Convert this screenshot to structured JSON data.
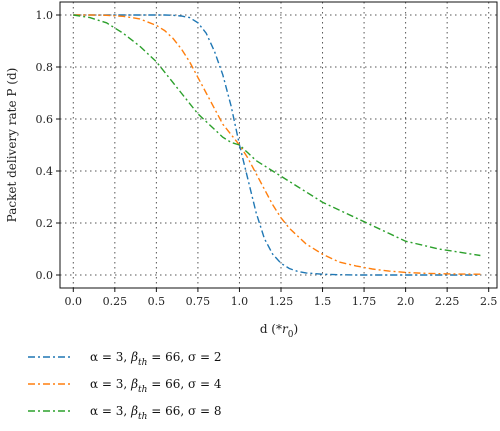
{
  "chart_data": {
    "type": "line",
    "xlabel": "d (*r₀)",
    "xlabel_main": "d (*",
    "xlabel_var": "r",
    "xlabel_sub": "0",
    "xlabel_close": ")",
    "ylabel": "Packet delivery rate P (d)",
    "xlim": [
      -0.08,
      2.55
    ],
    "ylim": [
      -0.05,
      1.05
    ],
    "xticks": [
      0.0,
      0.25,
      0.5,
      0.75,
      1.0,
      1.25,
      1.5,
      1.75,
      2.0,
      2.25,
      2.5
    ],
    "xtick_labels": [
      "0.0",
      "0.25",
      "0.5",
      "0.75",
      "1.0",
      "1.25",
      "1.5",
      "1.75",
      "2.0",
      "2.25",
      "2.5"
    ],
    "yticks": [
      0.0,
      0.2,
      0.4,
      0.6,
      0.8,
      1.0
    ],
    "ytick_labels": [
      "0.0",
      "0.2",
      "0.4",
      "0.6",
      "0.8",
      "1.0"
    ],
    "grid": true,
    "grid_style": "dotted",
    "legend_position": "below",
    "x": [
      0.0,
      0.1,
      0.2,
      0.3,
      0.4,
      0.5,
      0.55,
      0.6,
      0.65,
      0.7,
      0.75,
      0.8,
      0.85,
      0.9,
      0.95,
      1.0,
      1.05,
      1.1,
      1.15,
      1.2,
      1.25,
      1.3,
      1.35,
      1.4,
      1.5,
      1.6,
      1.7,
      1.8,
      1.9,
      2.0,
      2.1,
      2.2,
      2.3,
      2.45
    ],
    "series": [
      {
        "name": "α = 3, βth = 66, σ = 2",
        "sigma": "2",
        "color": "#1f77b4",
        "values": [
          1.0,
          1.0,
          1.0,
          1.0,
          1.0,
          1.0,
          1.0,
          0.999,
          0.996,
          0.99,
          0.97,
          0.93,
          0.86,
          0.77,
          0.65,
          0.5,
          0.37,
          0.24,
          0.14,
          0.08,
          0.045,
          0.025,
          0.014,
          0.008,
          0.003,
          0.001,
          0.0,
          0.0,
          0.0,
          0.0,
          0.0,
          0.0,
          0.0,
          0.0
        ]
      },
      {
        "name": "α = 3, βth = 66, σ = 4",
        "sigma": "4",
        "color": "#ff7f0e",
        "values": [
          1.0,
          1.0,
          0.999,
          0.995,
          0.985,
          0.96,
          0.94,
          0.91,
          0.87,
          0.82,
          0.76,
          0.7,
          0.64,
          0.58,
          0.54,
          0.5,
          0.45,
          0.39,
          0.33,
          0.27,
          0.22,
          0.18,
          0.15,
          0.12,
          0.08,
          0.05,
          0.035,
          0.023,
          0.015,
          0.01,
          0.007,
          0.005,
          0.004,
          0.003
        ]
      },
      {
        "name": "α = 3, βth = 66, σ = 8",
        "sigma": "8",
        "color": "#2ca02c",
        "values": [
          1.0,
          0.99,
          0.97,
          0.93,
          0.88,
          0.82,
          0.78,
          0.74,
          0.7,
          0.66,
          0.62,
          0.59,
          0.56,
          0.53,
          0.51,
          0.5,
          0.47,
          0.44,
          0.42,
          0.4,
          0.38,
          0.36,
          0.34,
          0.32,
          0.28,
          0.25,
          0.22,
          0.19,
          0.16,
          0.13,
          0.115,
          0.1,
          0.09,
          0.075
        ]
      }
    ]
  },
  "legend": [
    {
      "alpha": "α = 3, ",
      "beta": "β",
      "beta_sub": "th",
      "rest": " = 66, σ = 2"
    },
    {
      "alpha": "α = 3, ",
      "beta": "β",
      "beta_sub": "th",
      "rest": " = 66, σ = 4"
    },
    {
      "alpha": "α = 3, ",
      "beta": "β",
      "beta_sub": "th",
      "rest": " = 66, σ = 8"
    }
  ]
}
